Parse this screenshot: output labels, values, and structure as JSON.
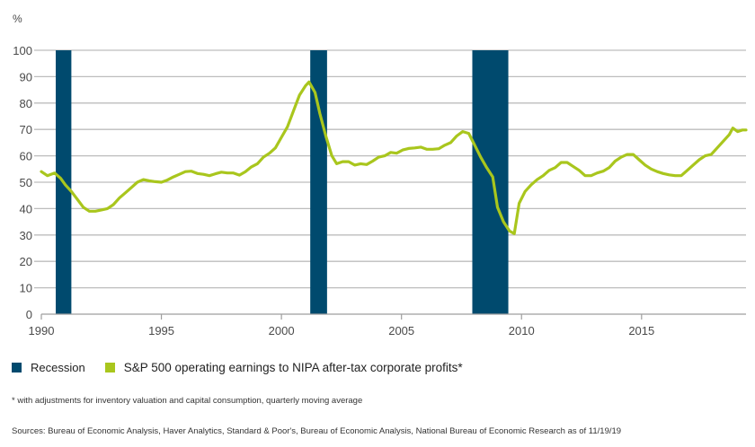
{
  "chart_data": {
    "type": "line",
    "title": "",
    "ylabel": "%",
    "xlabel": "",
    "xlim": [
      1990,
      2019.35
    ],
    "ylim": [
      0,
      100
    ],
    "yticks": [
      0,
      10,
      20,
      30,
      40,
      50,
      60,
      70,
      80,
      90,
      100
    ],
    "xticks": [
      1990,
      1995,
      2000,
      2005,
      2010,
      2015
    ],
    "grid": "horizontal",
    "legend_position": "bottom-left",
    "colors": {
      "recession": "#004a6e",
      "series": "#a9c61d",
      "grid": "#bdbdbd",
      "axis": "#9e9e9e"
    },
    "recessions": [
      {
        "start": 1990.6,
        "end": 1991.25
      },
      {
        "start": 2001.2,
        "end": 2001.9
      },
      {
        "start": 2007.95,
        "end": 2009.45
      }
    ],
    "series": [
      {
        "name": "S&P 500 operating earnings to NIPA after-tax corporate profits*",
        "points": [
          [
            1990.0,
            54
          ],
          [
            1990.25,
            52.5
          ],
          [
            1990.55,
            53.5
          ],
          [
            1990.8,
            51.5
          ],
          [
            1991.0,
            49
          ],
          [
            1991.25,
            46.5
          ],
          [
            1991.5,
            43.5
          ],
          [
            1991.75,
            40.5
          ],
          [
            1992.0,
            39
          ],
          [
            1992.25,
            39
          ],
          [
            1992.5,
            39.5
          ],
          [
            1992.75,
            40
          ],
          [
            1993.0,
            41.5
          ],
          [
            1993.25,
            44
          ],
          [
            1993.5,
            46
          ],
          [
            1993.75,
            48
          ],
          [
            1994.0,
            50
          ],
          [
            1994.25,
            51
          ],
          [
            1994.5,
            50.5
          ],
          [
            1994.75,
            50.2
          ],
          [
            1995.0,
            50
          ],
          [
            1995.25,
            50.8
          ],
          [
            1995.5,
            52
          ],
          [
            1995.75,
            53
          ],
          [
            1996.0,
            54
          ],
          [
            1996.25,
            54.2
          ],
          [
            1996.5,
            53.3
          ],
          [
            1996.75,
            53
          ],
          [
            1997.0,
            52.5
          ],
          [
            1997.25,
            53.2
          ],
          [
            1997.5,
            53.8
          ],
          [
            1997.75,
            53.5
          ],
          [
            1998.0,
            53.5
          ],
          [
            1998.25,
            52.7
          ],
          [
            1998.5,
            54
          ],
          [
            1998.75,
            55.8
          ],
          [
            1999.0,
            57
          ],
          [
            1999.25,
            59.5
          ],
          [
            1999.5,
            61
          ],
          [
            1999.75,
            63
          ],
          [
            2000.0,
            67
          ],
          [
            2000.25,
            71
          ],
          [
            2000.5,
            77
          ],
          [
            2000.75,
            83
          ],
          [
            2001.0,
            86.5
          ],
          [
            2001.15,
            88
          ],
          [
            2001.4,
            84
          ],
          [
            2001.6,
            76
          ],
          [
            2001.85,
            67.5
          ],
          [
            2002.1,
            60
          ],
          [
            2002.3,
            57
          ],
          [
            2002.55,
            57.8
          ],
          [
            2002.8,
            57.8
          ],
          [
            2003.05,
            56.5
          ],
          [
            2003.3,
            57
          ],
          [
            2003.55,
            56.7
          ],
          [
            2003.8,
            58
          ],
          [
            2004.05,
            59.5
          ],
          [
            2004.3,
            60
          ],
          [
            2004.55,
            61.3
          ],
          [
            2004.8,
            61
          ],
          [
            2005.05,
            62.2
          ],
          [
            2005.3,
            62.8
          ],
          [
            2005.55,
            63
          ],
          [
            2005.8,
            63.3
          ],
          [
            2006.05,
            62.5
          ],
          [
            2006.3,
            62.5
          ],
          [
            2006.55,
            62.7
          ],
          [
            2006.8,
            64
          ],
          [
            2007.05,
            65
          ],
          [
            2007.3,
            67.5
          ],
          [
            2007.55,
            69.2
          ],
          [
            2007.8,
            68.5
          ],
          [
            2008.05,
            64
          ],
          [
            2008.3,
            59.5
          ],
          [
            2008.55,
            55.5
          ],
          [
            2008.8,
            52
          ],
          [
            2009.0,
            40.5
          ],
          [
            2009.25,
            35
          ],
          [
            2009.5,
            31.5
          ],
          [
            2009.7,
            30.5
          ],
          [
            2009.9,
            42
          ],
          [
            2010.15,
            46.5
          ],
          [
            2010.4,
            49
          ],
          [
            2010.65,
            51
          ],
          [
            2010.9,
            52.5
          ],
          [
            2011.15,
            54.5
          ],
          [
            2011.4,
            55.5
          ],
          [
            2011.65,
            57.5
          ],
          [
            2011.9,
            57.5
          ],
          [
            2012.15,
            56
          ],
          [
            2012.4,
            54.5
          ],
          [
            2012.65,
            52.5
          ],
          [
            2012.9,
            52.5
          ],
          [
            2013.15,
            53.5
          ],
          [
            2013.4,
            54.2
          ],
          [
            2013.65,
            55.5
          ],
          [
            2013.9,
            58
          ],
          [
            2014.15,
            59.5
          ],
          [
            2014.4,
            60.5
          ],
          [
            2014.65,
            60.5
          ],
          [
            2014.9,
            58.5
          ],
          [
            2015.15,
            56.5
          ],
          [
            2015.4,
            55
          ],
          [
            2015.65,
            54
          ],
          [
            2015.9,
            53.3
          ],
          [
            2016.15,
            52.8
          ],
          [
            2016.4,
            52.5
          ],
          [
            2016.65,
            52.5
          ],
          [
            2016.9,
            54.5
          ],
          [
            2017.15,
            56.5
          ],
          [
            2017.4,
            58.5
          ],
          [
            2017.65,
            60
          ],
          [
            2017.9,
            60.5
          ],
          [
            2018.15,
            63
          ],
          [
            2018.4,
            65.5
          ],
          [
            2018.65,
            68
          ],
          [
            2018.8,
            70.5
          ],
          [
            2019.0,
            69.2
          ],
          [
            2019.2,
            69.8
          ],
          [
            2019.35,
            69.8
          ]
        ]
      }
    ]
  },
  "legend": {
    "recession_label": "Recession",
    "series_label": "S&P 500 operating earnings to NIPA after-tax corporate profits*"
  },
  "footnote": "* with adjustments for inventory valuation and capital consumption, quarterly moving average",
  "sources": "Sources: Bureau of Economic Analysis, Haver Analytics, Standard & Poor's, Bureau of Economic Analysis, National Bureau of Economic Research as of 11/19/19"
}
